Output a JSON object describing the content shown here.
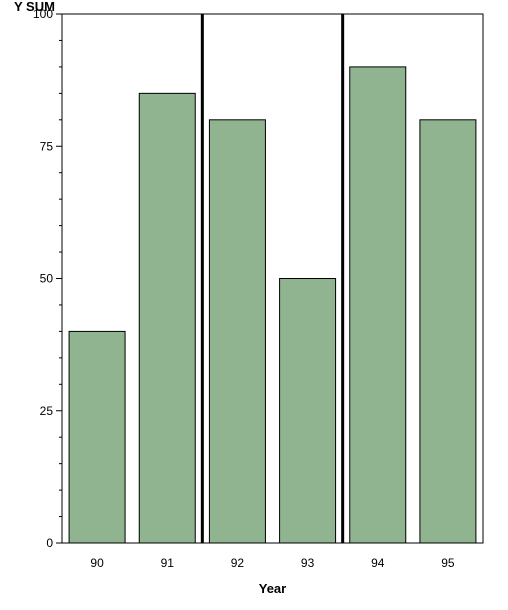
{
  "chart_data": {
    "type": "bar",
    "categories": [
      "90",
      "91",
      "92",
      "93",
      "94",
      "95"
    ],
    "values": [
      40,
      85,
      80,
      50,
      90,
      80
    ],
    "ylabel": "Y SUM",
    "xlabel": "Year",
    "ylim": [
      0,
      100
    ],
    "yticks": [
      0,
      25,
      50,
      75,
      100
    ],
    "minor_ticks_per_interval": 5,
    "reference_lines_after_category": [
      "91",
      "93"
    ],
    "grid": false,
    "legend": "none",
    "bar_color": "#8fb48f",
    "bar_edge_color": "#000000",
    "reference_line_color": "#000000"
  }
}
